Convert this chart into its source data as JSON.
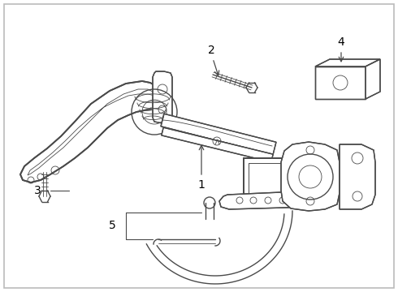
{
  "bg_color": "#ffffff",
  "line_color": "#4a4a4a",
  "figsize": [
    4.9,
    3.6
  ],
  "dpi": 100,
  "label_fontsize": 10,
  "border_color": "#bbbbbb",
  "lw_main": 1.0,
  "lw_thin": 0.6,
  "lw_thick": 1.3
}
